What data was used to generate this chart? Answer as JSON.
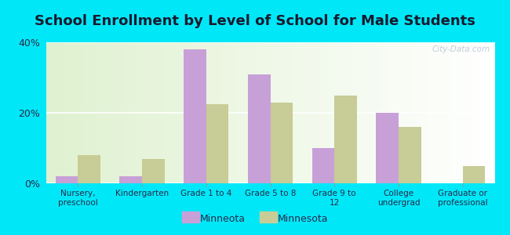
{
  "title": "School Enrollment by Level of School for Male Students",
  "categories": [
    "Nursery,\npreschool",
    "Kindergarten",
    "Grade 1 to 4",
    "Grade 5 to 8",
    "Grade 9 to\n12",
    "College\nundergrad",
    "Graduate or\nprofessional"
  ],
  "minneota": [
    2.0,
    2.0,
    38.0,
    31.0,
    10.0,
    20.0,
    0.0
  ],
  "minnesota": [
    8.0,
    7.0,
    22.5,
    23.0,
    25.0,
    16.0,
    5.0
  ],
  "minneota_color": "#c8a0d8",
  "minnesota_color": "#c8cc96",
  "ylim": [
    0,
    40
  ],
  "yticks": [
    0,
    20,
    40
  ],
  "ytick_labels": [
    "0%",
    "20%",
    "40%"
  ],
  "bar_width": 0.35,
  "outer_bg": "#00e8f8",
  "title_fontsize": 13,
  "title_color": "#1a1a2e",
  "legend_labels": [
    "Minneota",
    "Minnesota"
  ],
  "watermark": "City-Data.com",
  "watermark_color": "#b8c8d8",
  "tick_label_color": "#2a2a4a",
  "grid_color": "#ffffff"
}
